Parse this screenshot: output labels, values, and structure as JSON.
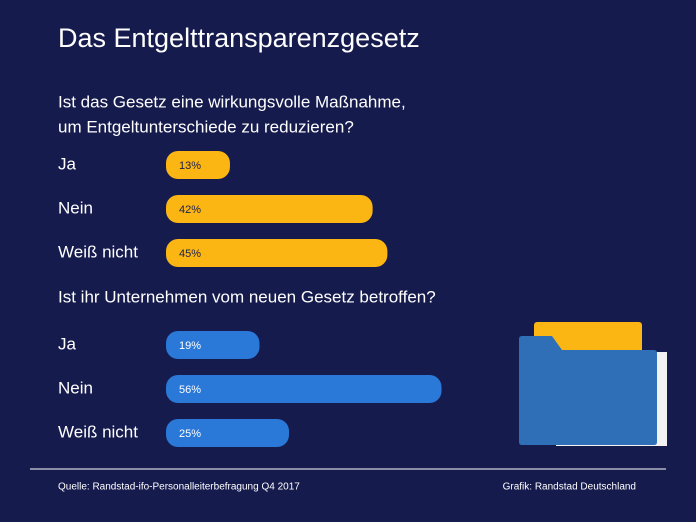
{
  "title": "Das Entgelttransparenzgesetz",
  "source": "Quelle: Randstad-ifo-Personalleiterbefragung Q4 2017",
  "credit": "Grafik: Randstad Deutschland",
  "chart_data": [
    {
      "type": "bar",
      "title": [
        "Ist das Gesetz eine wirkungsvolle Maßnahme,",
        "um Entgeltunterschiede zu reduzieren?"
      ],
      "categories": [
        "Ja",
        "Nein",
        "Weiß nicht"
      ],
      "values": [
        13,
        42,
        45
      ],
      "value_labels": [
        "13%",
        "42%",
        "45%"
      ],
      "color": "#fbb614",
      "label_color": "#1a1f4f"
    },
    {
      "type": "bar",
      "title": [
        "Ist ihr Unternehmen vom neuen Gesetz betroffen?"
      ],
      "categories": [
        "Ja",
        "Nein",
        "Weiß nicht"
      ],
      "values": [
        19,
        56,
        25
      ],
      "value_labels": [
        "19%",
        "56%",
        "25%"
      ],
      "color": "#2a78d8",
      "label_color": "#ffffff"
    }
  ]
}
